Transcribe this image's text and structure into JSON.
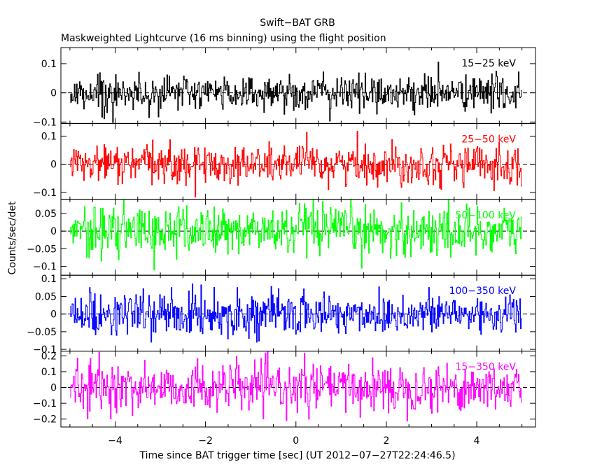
{
  "chart_data": {
    "type": "line",
    "title": "Swift−BAT GRB",
    "subtitle": "Maskweighted Lightcurve (16 ms binning) using the flight position",
    "xlabel": "Time since BAT trigger time [sec] (UT 2012−07−27T22:24:46.5)",
    "ylabel": "Counts/sec/det",
    "xlim": [
      -5.2,
      5.3
    ],
    "x_ticks": [
      -4,
      -2,
      0,
      2,
      4
    ],
    "x_tick_labels": [
      "−4",
      "−2",
      "0",
      "2",
      "4"
    ],
    "x_range": [
      -5.0,
      5.0
    ],
    "bin_size_sec": 0.016,
    "panels": [
      {
        "name": "15−25 keV",
        "color": "#000000",
        "ylim": [
          -0.105,
          0.155
        ],
        "y_ticks": [
          -0.1,
          0,
          0.1
        ],
        "y_tick_labels": [
          "−0.1",
          "0",
          "0.1"
        ],
        "noise_sigma": 0.03
      },
      {
        "name": "25−50 keV",
        "color": "#ff0000",
        "ylim": [
          -0.125,
          0.145
        ],
        "y_ticks": [
          -0.1,
          0,
          0.1
        ],
        "y_tick_labels": [
          "−0.1",
          "0",
          "0.1"
        ],
        "noise_sigma": 0.035
      },
      {
        "name": "50−100 keV",
        "color": "#00ff00",
        "ylim": [
          -0.125,
          0.09
        ],
        "y_ticks": [
          -0.1,
          -0.05,
          0,
          0.05
        ],
        "y_tick_labels": [
          "−0.1",
          "−0.05",
          "0",
          "0.05"
        ],
        "noise_sigma": 0.035
      },
      {
        "name": "100−350 keV",
        "color": "#0000ff",
        "ylim": [
          -0.105,
          0.11
        ],
        "y_ticks": [
          -0.1,
          -0.05,
          0,
          0.05,
          0.1
        ],
        "y_tick_labels": [
          "−0.1",
          "−0.05",
          "0",
          "0.05",
          "0.1"
        ],
        "noise_sigma": 0.03
      },
      {
        "name": "15−350 keV",
        "color": "#ff00ff",
        "ylim": [
          -0.25,
          0.23
        ],
        "y_ticks": [
          -0.2,
          -0.1,
          0,
          0.1,
          0.2
        ],
        "y_tick_labels": [
          "−0.2",
          "−0.1",
          "0",
          "0.1",
          "0.2"
        ],
        "noise_sigma": 0.075
      }
    ]
  }
}
